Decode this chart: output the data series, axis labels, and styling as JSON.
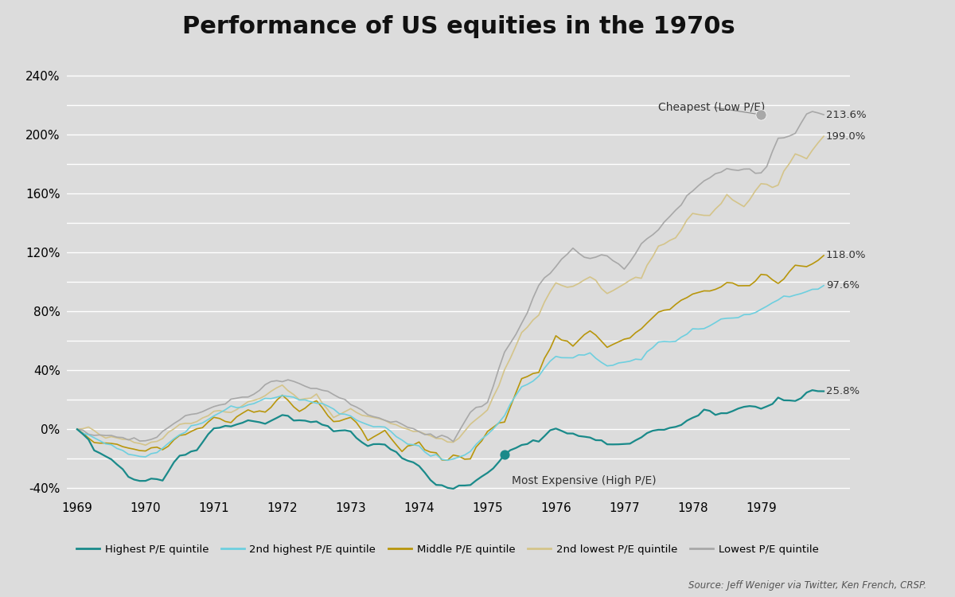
{
  "title": "Performance of US equities in the 1970s",
  "source_text": "Source: Jeff Weniger via Twitter, Ken French, CRSP.",
  "bg_color": "#dcdcdc",
  "plot_bg_color": "#dcdcdc",
  "ylim": [
    -45,
    255
  ],
  "ytick_vals": [
    -40,
    -20,
    0,
    20,
    40,
    60,
    80,
    100,
    120,
    140,
    160,
    180,
    200,
    220,
    240
  ],
  "ytick_labels": [
    "-40%",
    "",
    "0%",
    "",
    "40%",
    "",
    "80%",
    "",
    "120%",
    "",
    "160%",
    "",
    "200%",
    "",
    "240%"
  ],
  "xtick_positions": [
    1969,
    1970,
    1971,
    1972,
    1973,
    1974,
    1975,
    1976,
    1977,
    1978,
    1979
  ],
  "xtick_labels": [
    "1969",
    "1970",
    "1971",
    "1972",
    "1973",
    "1974",
    "1975",
    "1976",
    "1977",
    "1978",
    "1979"
  ],
  "final_values": {
    "lowest_pe": 213.6,
    "second_lowest_pe": 199.0,
    "middle_pe": 118.0,
    "second_highest_pe": 97.6,
    "highest_pe": 25.8
  },
  "colors": {
    "highest_pe": "#1a8a8a",
    "second_highest_pe": "#6ecfdf",
    "middle_pe": "#b8960c",
    "second_lowest_pe": "#d4c48a",
    "lowest_pe": "#a8a8a8"
  },
  "legend_labels": [
    "Highest P/E quintile",
    "2nd highest P/E quintile",
    "Middle P/E quintile",
    "2nd lowest P/E quintile",
    "Lowest P/E quintile"
  ],
  "cheapest_label": "Cheapest (Low P/E)",
  "expensive_label": "Most Expensive (High P/E)"
}
